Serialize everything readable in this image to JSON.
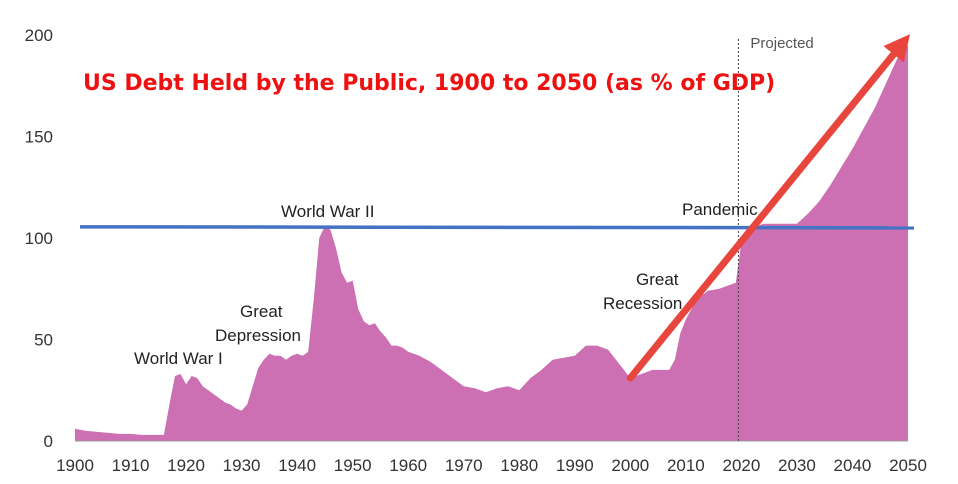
{
  "chart_data": {
    "type": "area",
    "title": "US Debt Held by the Public, 1900 to 2050 (as % of GDP)",
    "xlabel": "",
    "ylabel": "",
    "xlim": [
      1900,
      2050
    ],
    "ylim": [
      0,
      200
    ],
    "x_ticks": [
      "1900",
      "1910",
      "1920",
      "1930",
      "1940",
      "1950",
      "1960",
      "1970",
      "1980",
      "1990",
      "2000",
      "2010",
      "2020",
      "2030",
      "2040",
      "2050"
    ],
    "y_ticks": [
      "0",
      "50",
      "100",
      "150",
      "200"
    ],
    "grid": false,
    "fill_color": "#cc6fb3",
    "reference_line": {
      "y": 106,
      "color": "#4472c4"
    },
    "projection_start": {
      "x": 2020,
      "label": "Projected"
    },
    "trend_arrow": {
      "from": [
        2000,
        31
      ],
      "to": [
        2050,
        196
      ],
      "color": "#e8463d"
    },
    "series": [
      {
        "x": [
          1900,
          1902,
          1904,
          1906,
          1908,
          1910,
          1912,
          1914,
          1916,
          1917,
          1918,
          1919,
          1920,
          1921,
          1922,
          1923,
          1924,
          1925,
          1926,
          1927,
          1928,
          1929,
          1930,
          1931,
          1932,
          1933,
          1934,
          1935,
          1936,
          1937,
          1938,
          1939,
          1940,
          1941,
          1942,
          1943,
          1944,
          1945,
          1946,
          1947,
          1948,
          1949,
          1950,
          1951,
          1952,
          1953,
          1954,
          1955,
          1956,
          1957,
          1958,
          1959,
          1960,
          1962,
          1964,
          1966,
          1968,
          1970,
          1972,
          1974,
          1976,
          1978,
          1980,
          1982,
          1984,
          1986,
          1988,
          1990,
          1992,
          1994,
          1996,
          1998,
          2000,
          2002,
          2004,
          2006,
          2007,
          2008,
          2009,
          2010,
          2012,
          2014,
          2016,
          2018,
          2019,
          2020,
          2021,
          2022,
          2024,
          2026,
          2028,
          2030,
          2032,
          2034,
          2036,
          2038,
          2040,
          2042,
          2044,
          2046,
          2048,
          2050
        ],
        "values": [
          6,
          5,
          4.5,
          4,
          3.5,
          3.5,
          3,
          3,
          3,
          18,
          32,
          33,
          28,
          32,
          31,
          27,
          25,
          23,
          21,
          19,
          18,
          16,
          15,
          18,
          27,
          36,
          40,
          43,
          42,
          42,
          40,
          42,
          43,
          42,
          44,
          70,
          100,
          106,
          104,
          95,
          83,
          78,
          79,
          65,
          59,
          57,
          58,
          54,
          51,
          47,
          47,
          46,
          44,
          42,
          39,
          35,
          31,
          27,
          26,
          24,
          26,
          27,
          25,
          31,
          35,
          40,
          41,
          42,
          47,
          47,
          45,
          38,
          31,
          33,
          35,
          35,
          35,
          40,
          53,
          60,
          70,
          74,
          75,
          77,
          78,
          98,
          103,
          105,
          107,
          107,
          107,
          107,
          112,
          118,
          126,
          135,
          144,
          154,
          164,
          176,
          188,
          195
        ]
      }
    ],
    "annotations": [
      "World War I",
      "Great",
      "Depression",
      "World War II",
      "Great",
      "Recession",
      "Pandemic"
    ]
  }
}
